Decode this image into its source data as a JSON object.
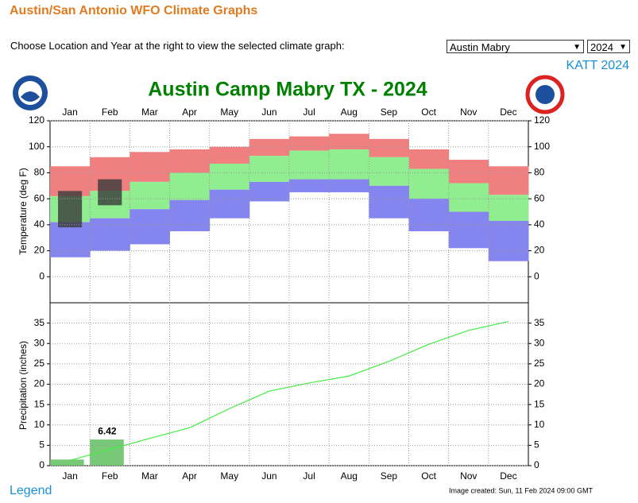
{
  "header": {
    "title": "Austin/San Antonio WFO Climate Graphs"
  },
  "controls": {
    "instructions": "Choose Location and Year at the right to view the selected climate graph:",
    "location": "Austin Mabry",
    "year": "2024",
    "station_link": "KATT 2024"
  },
  "footer": {
    "legend_link": "Legend",
    "image_created": "Image created: Sun, 11 Feb 2024 09:00 GMT"
  },
  "chart_data": [
    {
      "type": "band",
      "title": "Austin Camp Mabry TX - 2024",
      "y_label": "Temperature (deg F)",
      "categories": [
        "Jan",
        "Feb",
        "Mar",
        "Apr",
        "May",
        "Jun",
        "Jul",
        "Aug",
        "Sep",
        "Oct",
        "Nov",
        "Dec"
      ],
      "series": [
        {
          "color": "#f08080",
          "values": [
            85,
            92,
            96,
            98,
            100,
            106,
            108,
            110,
            106,
            98,
            90,
            85
          ]
        },
        {
          "color": "#90ee90",
          "values": [
            62,
            66,
            73,
            80,
            87,
            93,
            97,
            98,
            92,
            83,
            72,
            63
          ]
        },
        {
          "color": "#8585f0",
          "values": [
            42,
            45,
            52,
            59,
            67,
            73,
            75,
            75,
            70,
            60,
            50,
            43
          ]
        },
        {
          "values": [
            15,
            20,
            25,
            35,
            45,
            58,
            65,
            65,
            45,
            35,
            22,
            12
          ]
        }
      ],
      "observed": {
        "color": "#3a3a3a",
        "high": [
          66,
          75,
          null,
          null,
          null,
          null,
          null,
          null,
          null,
          null,
          null,
          null
        ],
        "low": [
          38,
          55,
          null,
          null,
          null,
          null,
          null,
          null,
          null,
          null,
          null,
          null
        ]
      },
      "ylim": [
        -20,
        120
      ],
      "yticks": [
        0,
        20,
        40,
        60,
        80,
        100,
        120
      ],
      "grid": true
    },
    {
      "type": "line",
      "y_label": "Precipitation (inches)",
      "categories": [
        "Jan",
        "Feb",
        "Mar",
        "Apr",
        "May",
        "Jun",
        "Jul",
        "Aug",
        "Sep",
        "Oct",
        "Nov",
        "Dec"
      ],
      "series": [
        {
          "color": "#44ee44",
          "values": [
            1.3,
            4.0,
            6.7,
            9.3,
            14.0,
            18.3,
            20.3,
            22.0,
            25.6,
            29.8,
            33.2,
            35.4
          ]
        },
        {
          "color": "#5fbf5f",
          "values": [
            1.5,
            6.42,
            null,
            null,
            null,
            null,
            null,
            null,
            null,
            null,
            null,
            null
          ],
          "value_labels": [
            null,
            "6.42",
            null,
            null,
            null,
            null,
            null,
            null,
            null,
            null,
            null,
            null
          ]
        }
      ],
      "ylim": [
        0,
        40
      ],
      "yticks": [
        0,
        5,
        10,
        15,
        20,
        25,
        30,
        35
      ],
      "grid": true
    }
  ]
}
